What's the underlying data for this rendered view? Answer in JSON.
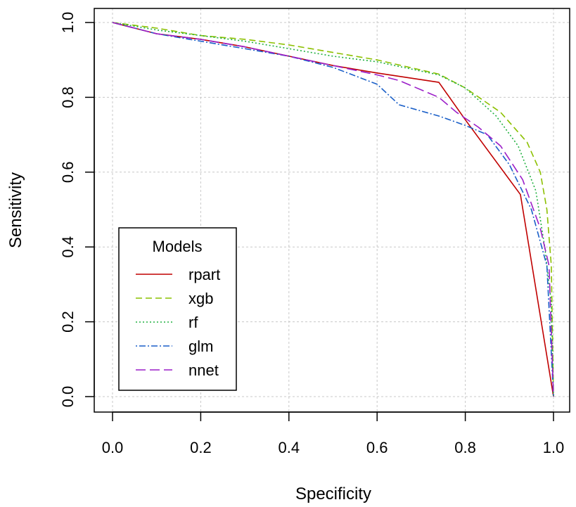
{
  "chart_data": {
    "type": "line",
    "xlabel": "Specificity",
    "ylabel": "Sensitivity",
    "xlim": [
      0.0,
      1.0
    ],
    "ylim": [
      0.0,
      1.0
    ],
    "x_ticks": [
      "0.0",
      "0.2",
      "0.4",
      "0.6",
      "0.8",
      "1.0"
    ],
    "y_ticks": [
      "0.0",
      "0.2",
      "0.4",
      "0.6",
      "0.8",
      "1.0"
    ],
    "grid": true,
    "legend": {
      "title": "Models",
      "position": "bottom-left"
    },
    "series": [
      {
        "name": "rpart",
        "color": "#c00000",
        "dash": "solid",
        "points": [
          [
            0.0,
            1.0
          ],
          [
            0.1,
            0.97
          ],
          [
            0.2,
            0.955
          ],
          [
            0.3,
            0.935
          ],
          [
            0.4,
            0.91
          ],
          [
            0.5,
            0.885
          ],
          [
            0.6,
            0.865
          ],
          [
            0.74,
            0.84
          ],
          [
            0.8,
            0.74
          ],
          [
            0.925,
            0.54
          ],
          [
            1.0,
            0.0
          ]
        ]
      },
      {
        "name": "xgb",
        "color": "#8cc000",
        "dash": "dashed",
        "points": [
          [
            0.0,
            1.0
          ],
          [
            0.1,
            0.985
          ],
          [
            0.2,
            0.965
          ],
          [
            0.3,
            0.955
          ],
          [
            0.4,
            0.94
          ],
          [
            0.5,
            0.92
          ],
          [
            0.6,
            0.9
          ],
          [
            0.74,
            0.862
          ],
          [
            0.8,
            0.825
          ],
          [
            0.88,
            0.76
          ],
          [
            0.94,
            0.68
          ],
          [
            0.97,
            0.6
          ],
          [
            0.985,
            0.5
          ],
          [
            0.995,
            0.35
          ],
          [
            1.0,
            0.0
          ]
        ]
      },
      {
        "name": "rf",
        "color": "#20b040",
        "dash": "dotted",
        "points": [
          [
            0.0,
            1.0
          ],
          [
            0.1,
            0.98
          ],
          [
            0.2,
            0.965
          ],
          [
            0.3,
            0.95
          ],
          [
            0.4,
            0.93
          ],
          [
            0.5,
            0.91
          ],
          [
            0.6,
            0.895
          ],
          [
            0.74,
            0.86
          ],
          [
            0.8,
            0.825
          ],
          [
            0.87,
            0.75
          ],
          [
            0.92,
            0.67
          ],
          [
            0.96,
            0.55
          ],
          [
            0.98,
            0.4
          ],
          [
            0.995,
            0.25
          ],
          [
            1.0,
            0.0
          ]
        ]
      },
      {
        "name": "glm",
        "color": "#1a5fc8",
        "dash": "dotdash",
        "points": [
          [
            0.0,
            1.0
          ],
          [
            0.1,
            0.97
          ],
          [
            0.2,
            0.95
          ],
          [
            0.3,
            0.93
          ],
          [
            0.4,
            0.91
          ],
          [
            0.5,
            0.88
          ],
          [
            0.6,
            0.835
          ],
          [
            0.65,
            0.78
          ],
          [
            0.74,
            0.75
          ],
          [
            0.8,
            0.725
          ],
          [
            0.85,
            0.7
          ],
          [
            0.9,
            0.62
          ],
          [
            0.95,
            0.5
          ],
          [
            0.985,
            0.35
          ],
          [
            1.0,
            0.0
          ]
        ]
      },
      {
        "name": "nnet",
        "color": "#9b1ec8",
        "dash": "longdash",
        "points": [
          [
            0.0,
            1.0
          ],
          [
            0.1,
            0.97
          ],
          [
            0.2,
            0.955
          ],
          [
            0.3,
            0.935
          ],
          [
            0.4,
            0.91
          ],
          [
            0.5,
            0.885
          ],
          [
            0.6,
            0.86
          ],
          [
            0.65,
            0.845
          ],
          [
            0.74,
            0.8
          ],
          [
            0.78,
            0.76
          ],
          [
            0.83,
            0.72
          ],
          [
            0.88,
            0.67
          ],
          [
            0.93,
            0.58
          ],
          [
            0.97,
            0.45
          ],
          [
            0.99,
            0.35
          ],
          [
            1.0,
            0.0
          ]
        ]
      }
    ]
  }
}
